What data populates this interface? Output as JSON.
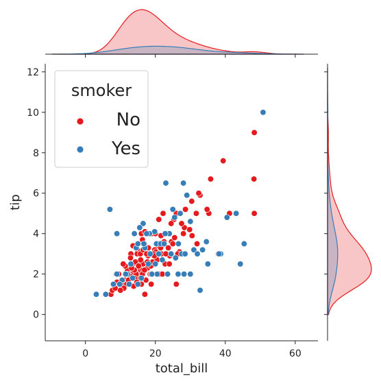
{
  "chart_data": {
    "type": "scatter",
    "subtype": "jointplot",
    "xlabel": "total_bill",
    "ylabel": "tip",
    "xlim": [
      -11.5,
      66.5
    ],
    "ylim": [
      -1.3,
      12.4
    ],
    "xticks": [
      0,
      20,
      40,
      60
    ],
    "yticks": [
      0,
      2,
      4,
      6,
      8,
      10,
      12
    ],
    "grid": false,
    "marginal": "kde",
    "legend": {
      "title": "smoker",
      "placement": "top-left",
      "entries": [
        "No",
        "Yes"
      ]
    },
    "series": [
      {
        "name": "No",
        "color": "#e41a1c",
        "points": [
          [
            17.0,
            1.0
          ],
          [
            10.3,
            1.7
          ],
          [
            21.0,
            3.5
          ],
          [
            23.7,
            3.3
          ],
          [
            24.6,
            3.6
          ],
          [
            25.3,
            4.7
          ],
          [
            8.8,
            2.0
          ],
          [
            26.9,
            3.1
          ],
          [
            15.0,
            2.0
          ],
          [
            14.8,
            3.2
          ],
          [
            10.3,
            1.7
          ],
          [
            35.3,
            5.0
          ],
          [
            15.4,
            1.6
          ],
          [
            18.4,
            3.0
          ],
          [
            14.8,
            3.0
          ],
          [
            21.6,
            3.9
          ],
          [
            10.3,
            1.7
          ],
          [
            16.3,
            3.7
          ],
          [
            16.9,
            3.5
          ],
          [
            20.7,
            3.4
          ],
          [
            20.3,
            2.8
          ],
          [
            18.4,
            2.5
          ],
          [
            15.8,
            2.2
          ],
          [
            39.4,
            7.6
          ],
          [
            19.8,
            3.2
          ],
          [
            17.8,
            2.3
          ],
          [
            13.4,
            2.0
          ],
          [
            28.3,
            4.3
          ],
          [
            21.2,
            2.0
          ],
          [
            22.8,
            2.5
          ],
          [
            12.0,
            1.5
          ],
          [
            17.9,
            2.9
          ],
          [
            24.1,
            2.9
          ],
          [
            25.0,
            3.5
          ],
          [
            16.4,
            2.2
          ],
          [
            9.5,
            2.0
          ],
          [
            21.7,
            3.0
          ],
          [
            11.9,
            1.6
          ],
          [
            18.7,
            2.4
          ],
          [
            24.0,
            2.5
          ],
          [
            48.3,
            9.0
          ],
          [
            48.2,
            6.7
          ],
          [
            48.3,
            5.0
          ],
          [
            7.3,
            1.0
          ],
          [
            7.7,
            1.2
          ],
          [
            20.1,
            3.1
          ],
          [
            30.4,
            5.6
          ],
          [
            32.8,
            5.9
          ],
          [
            34.8,
            5.2
          ],
          [
            29.8,
            4.2
          ],
          [
            41.2,
            5.0
          ],
          [
            38.0,
            3.0
          ],
          [
            12.5,
            1.5
          ],
          [
            13.0,
            2.0
          ],
          [
            31.7,
            5.0
          ],
          [
            28.6,
            5.2
          ],
          [
            30.0,
            2.0
          ],
          [
            27.5,
            4.5
          ],
          [
            15.7,
            3.0
          ],
          [
            16.3,
            2.0
          ],
          [
            15.0,
            1.8
          ],
          [
            16.5,
            3.2
          ],
          [
            20.9,
            3.5
          ],
          [
            18.3,
            4.0
          ],
          [
            22.2,
            5.0
          ],
          [
            26.4,
            3.0
          ],
          [
            31.9,
            3.5
          ],
          [
            35.8,
            6.7
          ],
          [
            32.4,
            6.0
          ],
          [
            10.5,
            1.5
          ],
          [
            11.2,
            1.7
          ],
          [
            12.3,
            2.0
          ],
          [
            13.5,
            2.5
          ],
          [
            14.5,
            2.0
          ],
          [
            15.5,
            2.5
          ],
          [
            16.5,
            2.5
          ],
          [
            17.5,
            3.0
          ],
          [
            18.5,
            2.0
          ],
          [
            19.5,
            3.0
          ],
          [
            22.0,
            2.0
          ],
          [
            23.0,
            3.0
          ],
          [
            26.0,
            5.0
          ],
          [
            28.0,
            4.0
          ],
          [
            13.0,
            3.0
          ],
          [
            8.5,
            1.3
          ],
          [
            11.8,
            1.5
          ],
          [
            14.0,
            1.8
          ],
          [
            16.0,
            4.0
          ],
          [
            17.0,
            4.1
          ],
          [
            19.0,
            4.0
          ],
          [
            20.0,
            4.0
          ],
          [
            12.0,
            2.2
          ],
          [
            14.3,
            2.6
          ],
          [
            15.2,
            2.4
          ],
          [
            13.8,
            1.4
          ],
          [
            11.0,
            1.3
          ],
          [
            9.7,
            1.5
          ],
          [
            10.0,
            1.2
          ],
          [
            12.7,
            1.9
          ],
          [
            14.7,
            1.6
          ],
          [
            15.8,
            2.7
          ],
          [
            16.9,
            2.2
          ],
          [
            18.0,
            3.3
          ],
          [
            19.2,
            2.6
          ],
          [
            20.5,
            2.7
          ],
          [
            21.5,
            3.3
          ],
          [
            22.5,
            3.6
          ],
          [
            23.5,
            4.0
          ],
          [
            24.5,
            4.5
          ],
          [
            25.5,
            3.8
          ],
          [
            11.4,
            2.4
          ],
          [
            12.9,
            2.8
          ],
          [
            13.6,
            3.4
          ],
          [
            16.0,
            1.5
          ],
          [
            17.3,
            1.7
          ],
          [
            18.8,
            1.5
          ],
          [
            21.0,
            4.7
          ],
          [
            26.0,
            1.5
          ],
          [
            30.5,
            3.9
          ],
          [
            9.0,
            1.6
          ],
          [
            10.8,
            2.5
          ],
          [
            14.0,
            2.2
          ],
          [
            18.9,
            2.0
          ],
          [
            17.7,
            2.6
          ],
          [
            19.7,
            2.9
          ],
          [
            11.6,
            2.0
          ],
          [
            12.3,
            1.7
          ],
          [
            13.2,
            2.3
          ]
        ]
      },
      {
        "name": "Yes",
        "color": "#377eb8",
        "points": [
          [
            50.8,
            10.0
          ],
          [
            7.0,
            5.2
          ],
          [
            3.1,
            1.0
          ],
          [
            5.8,
            1.0
          ],
          [
            32.8,
            1.2
          ],
          [
            44.3,
            2.5
          ],
          [
            45.4,
            3.5
          ],
          [
            43.1,
            5.0
          ],
          [
            40.5,
            4.8
          ],
          [
            38.7,
            3.0
          ],
          [
            34.6,
            3.6
          ],
          [
            29.0,
            5.9
          ],
          [
            28.0,
            6.5
          ],
          [
            23.0,
            6.5
          ],
          [
            27.1,
            5.0
          ],
          [
            26.6,
            3.5
          ],
          [
            25.0,
            5.2
          ],
          [
            24.0,
            4.0
          ],
          [
            22.8,
            4.0
          ],
          [
            21.0,
            3.0
          ],
          [
            20.3,
            3.5
          ],
          [
            19.8,
            4.1
          ],
          [
            18.3,
            4.0
          ],
          [
            17.5,
            4.0
          ],
          [
            16.5,
            4.5
          ],
          [
            15.5,
            4.3
          ],
          [
            14.5,
            3.3
          ],
          [
            13.0,
            2.5
          ],
          [
            12.0,
            2.0
          ],
          [
            11.5,
            2.0
          ],
          [
            10.5,
            1.7
          ],
          [
            9.8,
            1.5
          ],
          [
            9.0,
            2.0
          ],
          [
            8.0,
            1.5
          ],
          [
            9.0,
            4.0
          ],
          [
            14.0,
            4.0
          ],
          [
            15.0,
            3.5
          ],
          [
            17.0,
            3.3
          ],
          [
            18.5,
            3.0
          ],
          [
            20.0,
            2.5
          ],
          [
            21.5,
            3.5
          ],
          [
            22.5,
            3.5
          ],
          [
            24.5,
            3.0
          ],
          [
            25.5,
            4.8
          ],
          [
            26.5,
            2.0
          ],
          [
            27.5,
            3.0
          ],
          [
            28.5,
            3.0
          ],
          [
            30.0,
            2.0
          ],
          [
            31.0,
            3.2
          ],
          [
            32.0,
            3.0
          ],
          [
            33.5,
            3.2
          ],
          [
            35.0,
            2.5
          ],
          [
            30.0,
            4.6
          ],
          [
            20.5,
            2.0
          ],
          [
            15.0,
            1.5
          ],
          [
            12.5,
            1.5
          ],
          [
            16.0,
            1.8
          ],
          [
            18.0,
            2.5
          ],
          [
            19.0,
            2.0
          ],
          [
            22.0,
            2.7
          ],
          [
            23.5,
            2.0
          ],
          [
            25.8,
            2.8
          ],
          [
            28.2,
            2.0
          ],
          [
            38.2,
            3.0
          ],
          [
            16.7,
            3.5
          ],
          [
            13.5,
            1.8
          ]
        ]
      }
    ]
  }
}
